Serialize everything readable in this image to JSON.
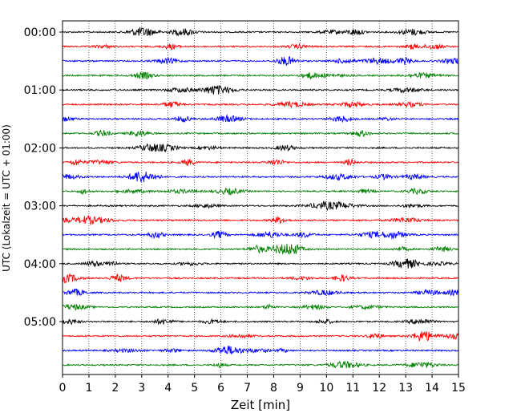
{
  "chart_data": {
    "type": "line",
    "title": "",
    "xlabel": "Zeit  [min]",
    "ylabel": "UTC (Lokalzeit = UTC + 01:00)",
    "xlim": [
      0,
      15
    ],
    "x_ticks": [
      0,
      1,
      2,
      3,
      4,
      5,
      6,
      7,
      8,
      9,
      10,
      11,
      12,
      13,
      14,
      15
    ],
    "y_tick_labels": [
      "00:00",
      "01:00",
      "02:00",
      "03:00",
      "04:00",
      "05:00"
    ],
    "row_interval_minutes": 15,
    "row_count": 24,
    "row_start_times": [
      "00:00",
      "00:15",
      "00:30",
      "00:45",
      "01:00",
      "01:15",
      "01:30",
      "01:45",
      "02:00",
      "02:15",
      "02:30",
      "02:45",
      "03:00",
      "03:15",
      "03:30",
      "03:45",
      "04:00",
      "04:15",
      "04:30",
      "04:45",
      "05:00",
      "05:15",
      "05:30",
      "05:45"
    ],
    "row_colors": [
      "#000000",
      "#ff0000",
      "#0000ff",
      "#008000"
    ],
    "vertical_grid": true,
    "grid_style": "dotted",
    "legend": "none"
  }
}
